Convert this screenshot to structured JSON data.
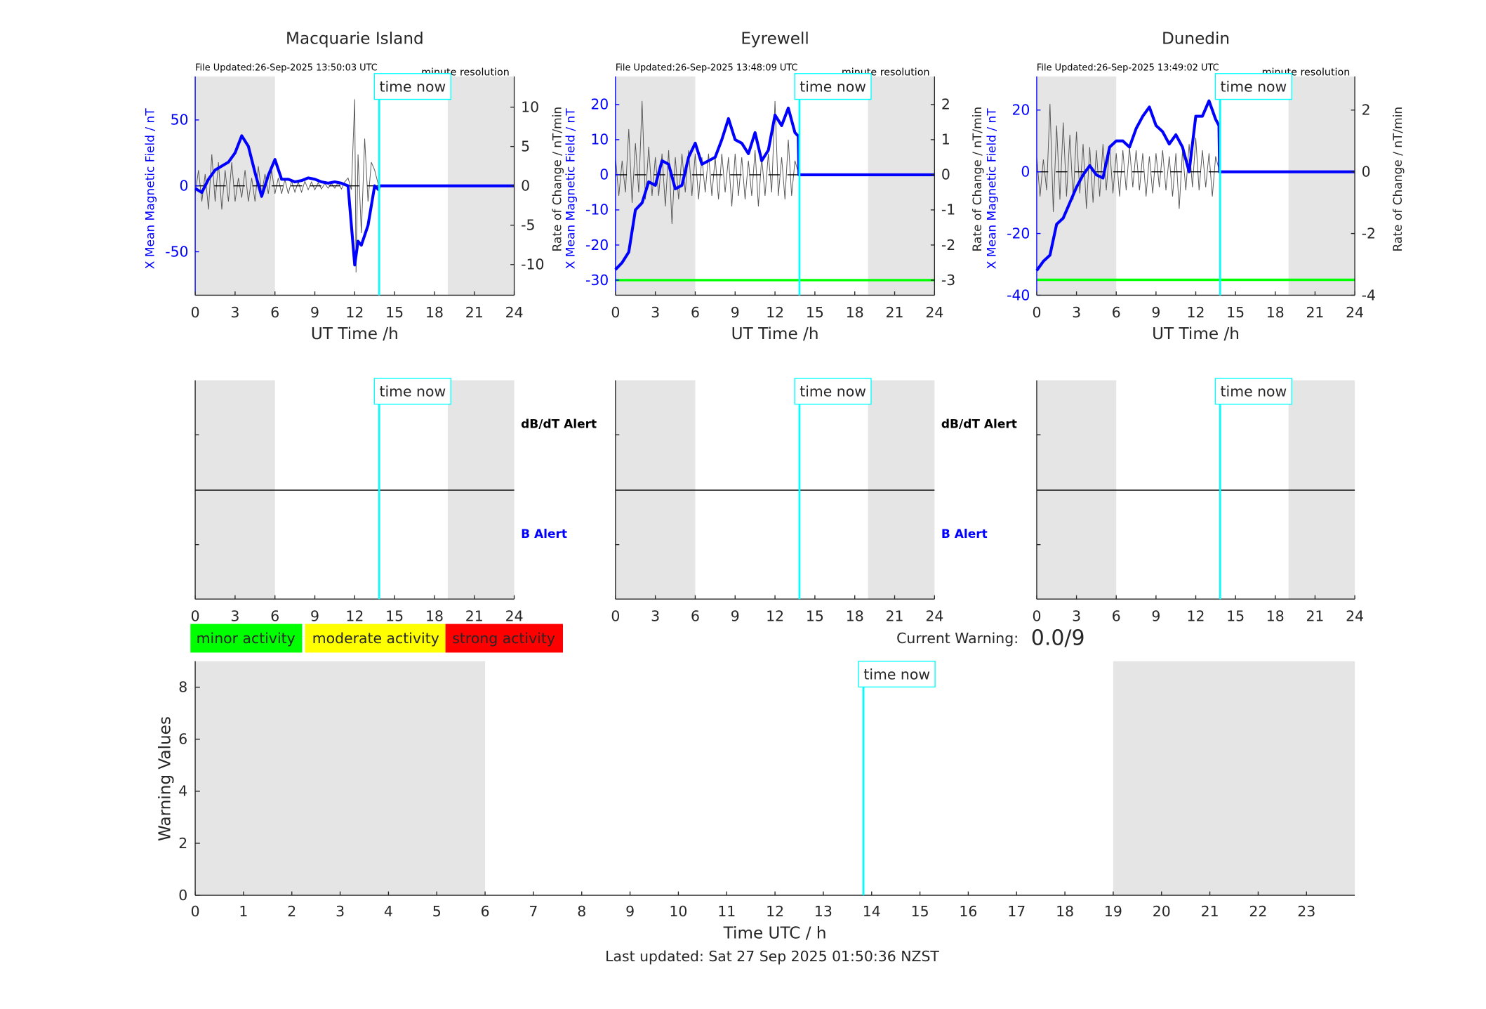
{
  "colors": {
    "field": "#0000ff",
    "rate": "#555555",
    "time_now": "#00ffff",
    "shade": "#e5e5e5",
    "threshold": "#00ff00",
    "minor": "#00ff00",
    "moderate": "#ffff00",
    "strong": "#ff0000",
    "b_alert": "#0000ff"
  },
  "chart_data": [
    {
      "type": "line",
      "title": "Macquarie Island",
      "file_updated": "File Updated:26-Sep-2025 13:50:03 UTC",
      "resolution": "minute resolution",
      "xlabel": "UT Time /h",
      "ylabel": "X Mean Magnetic Field / nT",
      "y2label": "Rate of Change / nT/min",
      "xlim": [
        0,
        24
      ],
      "xticks": [
        0,
        3,
        6,
        9,
        12,
        15,
        18,
        21,
        24
      ],
      "ylim": [
        -83,
        83
      ],
      "yticks": [
        -50,
        0,
        50
      ],
      "y2lim": [
        -13.9,
        13.9
      ],
      "y2ticks": [
        -10,
        -5,
        0,
        5,
        10
      ],
      "shaded": [
        [
          0,
          6
        ],
        [
          19,
          24
        ]
      ],
      "time_now": 13.84,
      "time_now_label": "time now",
      "series": [
        {
          "axis": "left",
          "x": [
            0,
            0.5,
            1,
            1.5,
            2,
            2.5,
            3,
            3.5,
            4,
            4.5,
            5,
            5.5,
            6,
            6.5,
            7,
            7.5,
            8,
            8.5,
            9,
            9.5,
            10,
            10.5,
            11,
            11.5,
            12,
            12.25,
            12.5,
            13,
            13.5,
            13.8,
            13.84,
            24
          ],
          "y": [
            -2,
            -5,
            5,
            12,
            15,
            18,
            25,
            38,
            30,
            10,
            -8,
            8,
            20,
            5,
            5,
            3,
            4,
            6,
            5,
            3,
            2,
            3,
            2,
            0,
            -60,
            -42,
            -45,
            -30,
            0,
            -3,
            0,
            0
          ]
        },
        {
          "axis": "right",
          "x": [
            0,
            0.25,
            0.5,
            0.75,
            1,
            1.25,
            1.5,
            1.75,
            2,
            2.25,
            2.5,
            2.75,
            3,
            3.25,
            3.5,
            3.75,
            4,
            4.25,
            4.5,
            4.75,
            5,
            5.25,
            5.5,
            5.75,
            6,
            6.25,
            6.5,
            6.75,
            7,
            7.25,
            7.5,
            7.75,
            8,
            8.25,
            8.5,
            8.75,
            9,
            9.25,
            9.5,
            9.75,
            10,
            10.25,
            10.5,
            10.75,
            11,
            11.25,
            11.5,
            11.75,
            12,
            12.1,
            12.25,
            12.5,
            12.75,
            13,
            13.25,
            13.5,
            13.8
          ],
          "y": [
            -1,
            2,
            -2,
            1.5,
            -3,
            4,
            -2,
            3,
            -3,
            2,
            -2,
            3,
            -2,
            1,
            -1.5,
            2,
            -2,
            1,
            -2,
            2.5,
            -1,
            1.5,
            -1,
            2,
            -1,
            1,
            -1,
            0.8,
            -1,
            0.6,
            -0.8,
            0.5,
            -0.8,
            0.6,
            -0.5,
            0.5,
            -0.5,
            0.4,
            -0.4,
            0.3,
            -0.3,
            0.3,
            -0.3,
            0.4,
            -0.4,
            0.5,
            1,
            -0.5,
            11,
            -11,
            4,
            -6,
            6,
            -2,
            3,
            2,
            0
          ]
        },
        {
          "axis": "right",
          "name": "zero reference",
          "x": [
            0,
            24
          ],
          "y": [
            0,
            0
          ]
        }
      ]
    },
    {
      "type": "line",
      "title": "Eyrewell",
      "file_updated": "File Updated:26-Sep-2025 13:48:09 UTC",
      "resolution": "minute resolution",
      "xlabel": "UT Time /h",
      "ylabel": "X Mean Magnetic Field / nT",
      "y2label": "Rate of Change / nT/min",
      "xlim": [
        0,
        24
      ],
      "xticks": [
        0,
        3,
        6,
        9,
        12,
        15,
        18,
        21,
        24
      ],
      "ylim": [
        -34.3,
        28
      ],
      "yticks": [
        -30,
        -20,
        -10,
        0,
        10,
        20
      ],
      "y2lim": [
        -3.43,
        2.8
      ],
      "y2ticks": [
        -3,
        -2,
        -1,
        0,
        1,
        2
      ],
      "shaded": [
        [
          0,
          6
        ],
        [
          19,
          24
        ]
      ],
      "time_now": 13.84,
      "time_now_label": "time now",
      "threshold": -30,
      "series": [
        {
          "axis": "left",
          "x": [
            0,
            0.5,
            1,
            1.5,
            2,
            2.5,
            3,
            3.5,
            4,
            4.5,
            5,
            5.5,
            6,
            6.5,
            7,
            7.5,
            8,
            8.5,
            9,
            9.5,
            10,
            10.5,
            11,
            11.5,
            12,
            12.5,
            13,
            13.5,
            13.75,
            13.8,
            13.84,
            24
          ],
          "y": [
            -27,
            -25,
            -22,
            -10,
            -8,
            -2,
            -3,
            4,
            3,
            -4,
            -3,
            5,
            9,
            3,
            4,
            5,
            10,
            16,
            10,
            9,
            6,
            12,
            4,
            7,
            17,
            14,
            19,
            12,
            11,
            0,
            0,
            0
          ]
        },
        {
          "axis": "right",
          "x": [
            0,
            0.25,
            0.5,
            0.75,
            1,
            1.25,
            1.5,
            1.75,
            2,
            2.25,
            2.5,
            2.75,
            3,
            3.25,
            3.5,
            3.75,
            4,
            4.25,
            4.5,
            4.75,
            5,
            5.25,
            5.5,
            5.75,
            6,
            6.25,
            6.5,
            6.75,
            7,
            7.25,
            7.5,
            7.75,
            8,
            8.25,
            8.5,
            8.75,
            9,
            9.25,
            9.5,
            9.75,
            10,
            10.25,
            10.5,
            10.75,
            11,
            11.25,
            11.5,
            11.75,
            12,
            12.25,
            12.5,
            12.75,
            13,
            13.25,
            13.5,
            13.8
          ],
          "y": [
            0.5,
            -0.6,
            0.4,
            -0.5,
            1.3,
            -0.8,
            0.9,
            -0.5,
            2.1,
            -0.7,
            0.8,
            -0.6,
            0.5,
            -0.6,
            0.6,
            -0.9,
            0.7,
            -1.4,
            0.5,
            -0.7,
            0.6,
            -0.5,
            0.7,
            -0.6,
            0.6,
            -0.7,
            0.5,
            -0.5,
            0.6,
            -0.6,
            0.5,
            -0.7,
            0.6,
            -0.5,
            0.5,
            -0.9,
            0.6,
            -0.6,
            0.5,
            -0.7,
            0.4,
            -0.6,
            0.7,
            -0.9,
            0.5,
            -0.6,
            0.6,
            -0.5,
            2.1,
            -0.6,
            0.5,
            -0.7,
            1.0,
            -0.6,
            0.4,
            0
          ]
        },
        {
          "axis": "right",
          "name": "zero reference",
          "x": [
            0,
            24
          ],
          "y": [
            0,
            0
          ]
        }
      ]
    },
    {
      "type": "line",
      "title": "Dunedin",
      "file_updated": "File Updated:26-Sep-2025 13:49:02 UTC",
      "resolution": "minute resolution",
      "xlabel": "UT Time /h",
      "ylabel": "X Mean Magnetic Field / nT",
      "y2label": "Rate of Change / nT/min",
      "xlim": [
        0,
        24
      ],
      "xticks": [
        0,
        3,
        6,
        9,
        12,
        15,
        18,
        21,
        24
      ],
      "ylim": [
        -40,
        30.9
      ],
      "yticks": [
        -40,
        -20,
        0,
        20
      ],
      "y2lim": [
        -4,
        3.09
      ],
      "y2ticks": [
        -4,
        -2,
        0,
        2
      ],
      "shaded": [
        [
          0,
          6
        ],
        [
          19,
          24
        ]
      ],
      "time_now": 13.84,
      "time_now_label": "time now",
      "threshold": -35,
      "series": [
        {
          "axis": "left",
          "x": [
            0,
            0.5,
            1,
            1.5,
            2,
            2.5,
            3,
            3.5,
            4,
            4.5,
            5,
            5.5,
            6,
            6.5,
            7,
            7.5,
            8,
            8.5,
            9,
            9.5,
            10,
            10.5,
            11,
            11.5,
            12,
            12.5,
            13,
            13.5,
            13.75,
            13.8,
            13.84,
            24
          ],
          "y": [
            -32,
            -29,
            -27,
            -17,
            -15,
            -10,
            -5,
            -1,
            2,
            -1,
            -2,
            8,
            10,
            10,
            8,
            14,
            18,
            21,
            15,
            13,
            9,
            12,
            8,
            0,
            18,
            18,
            23,
            17,
            15,
            0,
            0,
            0
          ]
        },
        {
          "axis": "right",
          "x": [
            0,
            0.25,
            0.5,
            0.75,
            1,
            1.25,
            1.5,
            1.75,
            2,
            2.25,
            2.5,
            2.75,
            3,
            3.25,
            3.5,
            3.75,
            4,
            4.25,
            4.5,
            4.75,
            5,
            5.25,
            5.5,
            5.75,
            6,
            6.25,
            6.5,
            6.75,
            7,
            7.25,
            7.5,
            7.75,
            8,
            8.25,
            8.5,
            8.75,
            9,
            9.25,
            9.5,
            9.75,
            10,
            10.25,
            10.5,
            10.75,
            11,
            11.25,
            11.5,
            11.75,
            12,
            12.25,
            12.5,
            12.75,
            13,
            13.25,
            13.5,
            13.8
          ],
          "y": [
            0.5,
            -0.8,
            0.4,
            -0.6,
            2.2,
            -1.3,
            1.5,
            -0.9,
            1.6,
            -0.8,
            1.2,
            -0.9,
            1.3,
            -0.7,
            0.9,
            -1.2,
            0.8,
            -1.0,
            0.7,
            -0.8,
            0.9,
            -0.6,
            0.8,
            -0.7,
            0.6,
            -0.8,
            0.7,
            -0.6,
            0.8,
            -0.5,
            0.7,
            -0.6,
            0.6,
            -0.8,
            0.5,
            -0.7,
            0.6,
            -0.5,
            0.7,
            -0.6,
            0.5,
            -0.8,
            0.6,
            -1.2,
            0.7,
            -0.6,
            0.9,
            -0.5,
            1.1,
            -0.6,
            0.7,
            -0.5,
            0.6,
            -0.8,
            0.5,
            0
          ]
        },
        {
          "axis": "right",
          "name": "zero reference",
          "x": [
            0,
            24
          ],
          "y": [
            0,
            0
          ]
        }
      ]
    },
    {
      "type": "line",
      "title": "",
      "xticks": [
        0,
        3,
        6,
        9,
        12,
        15,
        18,
        21,
        24
      ],
      "xlim": [
        0,
        24
      ],
      "shaded": [
        [
          0,
          6
        ],
        [
          19,
          24
        ]
      ],
      "time_now": 13.84,
      "time_now_label": "time now",
      "alert_labels": [
        "dB/dT Alert",
        "B Alert"
      ]
    },
    {
      "type": "line",
      "title": "",
      "xticks": [
        0,
        3,
        6,
        9,
        12,
        15,
        18,
        21,
        24
      ],
      "xlim": [
        0,
        24
      ],
      "shaded": [
        [
          0,
          6
        ],
        [
          19,
          24
        ]
      ],
      "time_now": 13.84,
      "time_now_label": "time now",
      "alert_labels": [
        "dB/dT Alert",
        "B Alert"
      ]
    },
    {
      "type": "line",
      "title": "",
      "xticks": [
        0,
        3,
        6,
        9,
        12,
        15,
        18,
        21,
        24
      ],
      "xlim": [
        0,
        24
      ],
      "shaded": [
        [
          0,
          6
        ],
        [
          19,
          24
        ]
      ],
      "time_now": 13.84,
      "time_now_label": "time now",
      "alert_labels": []
    },
    {
      "type": "line",
      "title": "",
      "xlabel": "Time UTC / h",
      "ylabel": "Warning Values",
      "xlim": [
        0,
        24
      ],
      "xticks": [
        0,
        1,
        2,
        3,
        4,
        5,
        6,
        7,
        8,
        9,
        10,
        11,
        12,
        13,
        14,
        15,
        16,
        17,
        18,
        19,
        20,
        21,
        22,
        23
      ],
      "ylim": [
        0,
        9
      ],
      "yticks": [
        0,
        2,
        4,
        6,
        8
      ],
      "shaded": [
        [
          0,
          6
        ],
        [
          19,
          24
        ]
      ],
      "time_now": 13.83,
      "time_now_label": "time now"
    }
  ],
  "legend": [
    {
      "label": "minor activity",
      "color": "#00ff00"
    },
    {
      "label": "moderate activity",
      "color": "#ffff00"
    },
    {
      "label": "strong activity",
      "color": "#ff0000"
    }
  ],
  "current_warning": {
    "label": "Current Warning:",
    "value": "0.0/9"
  },
  "footer": {
    "last_updated": "Last updated: Sat 27 Sep 2025 01:50:36 NZST"
  }
}
